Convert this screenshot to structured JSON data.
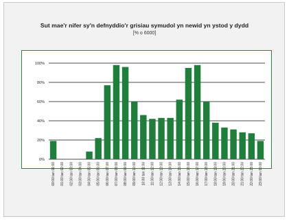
{
  "chart_data": {
    "type": "bar",
    "title": "Sut mae'r nifer sy'n defnyddio'r grisiau symudol yn newid yn ystod y dydd",
    "subtitle": "[% o 6000]",
    "categories": [
      "00:00 tan 01:00",
      "01:00 tan 02:00",
      "02:00 tan 03:00",
      "03:00 tan 04:00",
      "04:00 tan 05:00",
      "05:00 tan 06:00",
      "06:00 tan 07:00",
      "07:00 tan 08:00",
      "08:00 tan 09:00",
      "09:00 tan 10:00",
      "10:00 tan 11:00",
      "11:00 tan 12:00",
      "12:00 tan 13:00",
      "13:00 tan 14:00",
      "14:00 tan 15:00",
      "15:00 tan 16:00",
      "16:00 tan 17:00",
      "17:00 tan 18:00",
      "18:00 tan 19:00",
      "19:00 tan 20:00",
      "20:00 tan 21:00",
      "21:00 tan 22:00",
      "22:00 tan 23:00",
      "23:00 tan 00:00"
    ],
    "values": [
      19,
      0,
      0,
      0,
      8,
      22,
      77,
      98,
      96,
      60,
      46,
      42,
      43,
      43,
      62,
      95,
      98,
      60,
      38,
      33,
      31,
      28,
      27,
      19
    ],
    "yticks": [
      "0%",
      "20%",
      "40%",
      "60%",
      "80%",
      "100%"
    ],
    "ylim": [
      0,
      100
    ],
    "xlabel": "",
    "ylabel": "",
    "grid": true,
    "bar_color": "#1e7f3a",
    "frame_color": "#1e8a3b"
  }
}
